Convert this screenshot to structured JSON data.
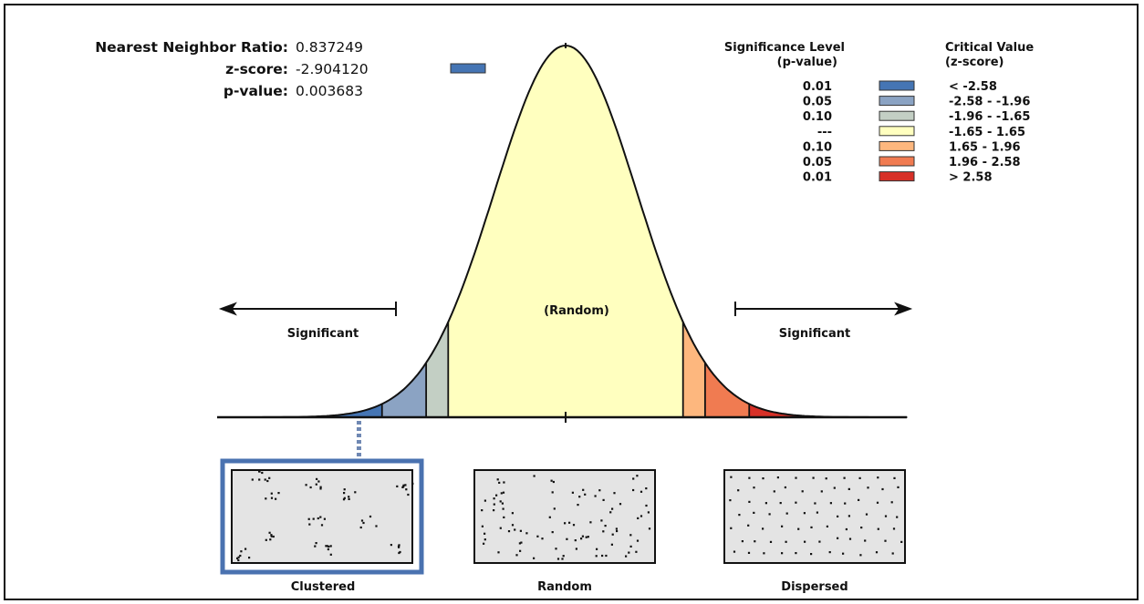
{
  "stats": {
    "nnr_label": "Nearest Neighbor Ratio:",
    "nnr_value": "0.837249",
    "z_label": "z-score:",
    "z_value": "-2.904120",
    "p_label": "p-value:",
    "p_value": "0.003683",
    "z_swatch_color": "#4575b4"
  },
  "legend": {
    "sig_header_1": "Significance Level",
    "sig_header_2": "(p-value)",
    "crit_header_1": "Critical Value",
    "crit_header_2": "(z-score)",
    "rows": [
      {
        "p": "0.01",
        "z": "< -2.58",
        "color": "#4575b4"
      },
      {
        "p": "0.05",
        "z": "-2.58 - -1.96",
        "color": "#8ba3c3"
      },
      {
        "p": "0.10",
        "z": "-1.96 - -1.65",
        "color": "#c3cfc4"
      },
      {
        "p": "---",
        "z": "-1.65 - 1.65",
        "color": "#ffffbf"
      },
      {
        "p": "0.10",
        "z": "1.65 - 1.96",
        "color": "#fdb77e"
      },
      {
        "p": "0.05",
        "z": "1.96 - 2.58",
        "color": "#f07b51"
      },
      {
        "p": "0.01",
        "z": "> 2.58",
        "color": "#d73027"
      }
    ]
  },
  "curve": {
    "random_label": "(Random)",
    "left_significant": "Significant",
    "right_significant": "Significant",
    "z_cutoffs": [
      -2.58,
      -1.96,
      -1.65,
      1.65,
      1.96,
      2.58
    ],
    "z_range": [
      -4.8,
      4.8
    ],
    "marker_z": -2.90412
  },
  "patterns": {
    "clustered_label": "Clustered",
    "random_label": "Random",
    "dispersed_label": "Dispersed",
    "highlight_color": "#4a72b0"
  }
}
